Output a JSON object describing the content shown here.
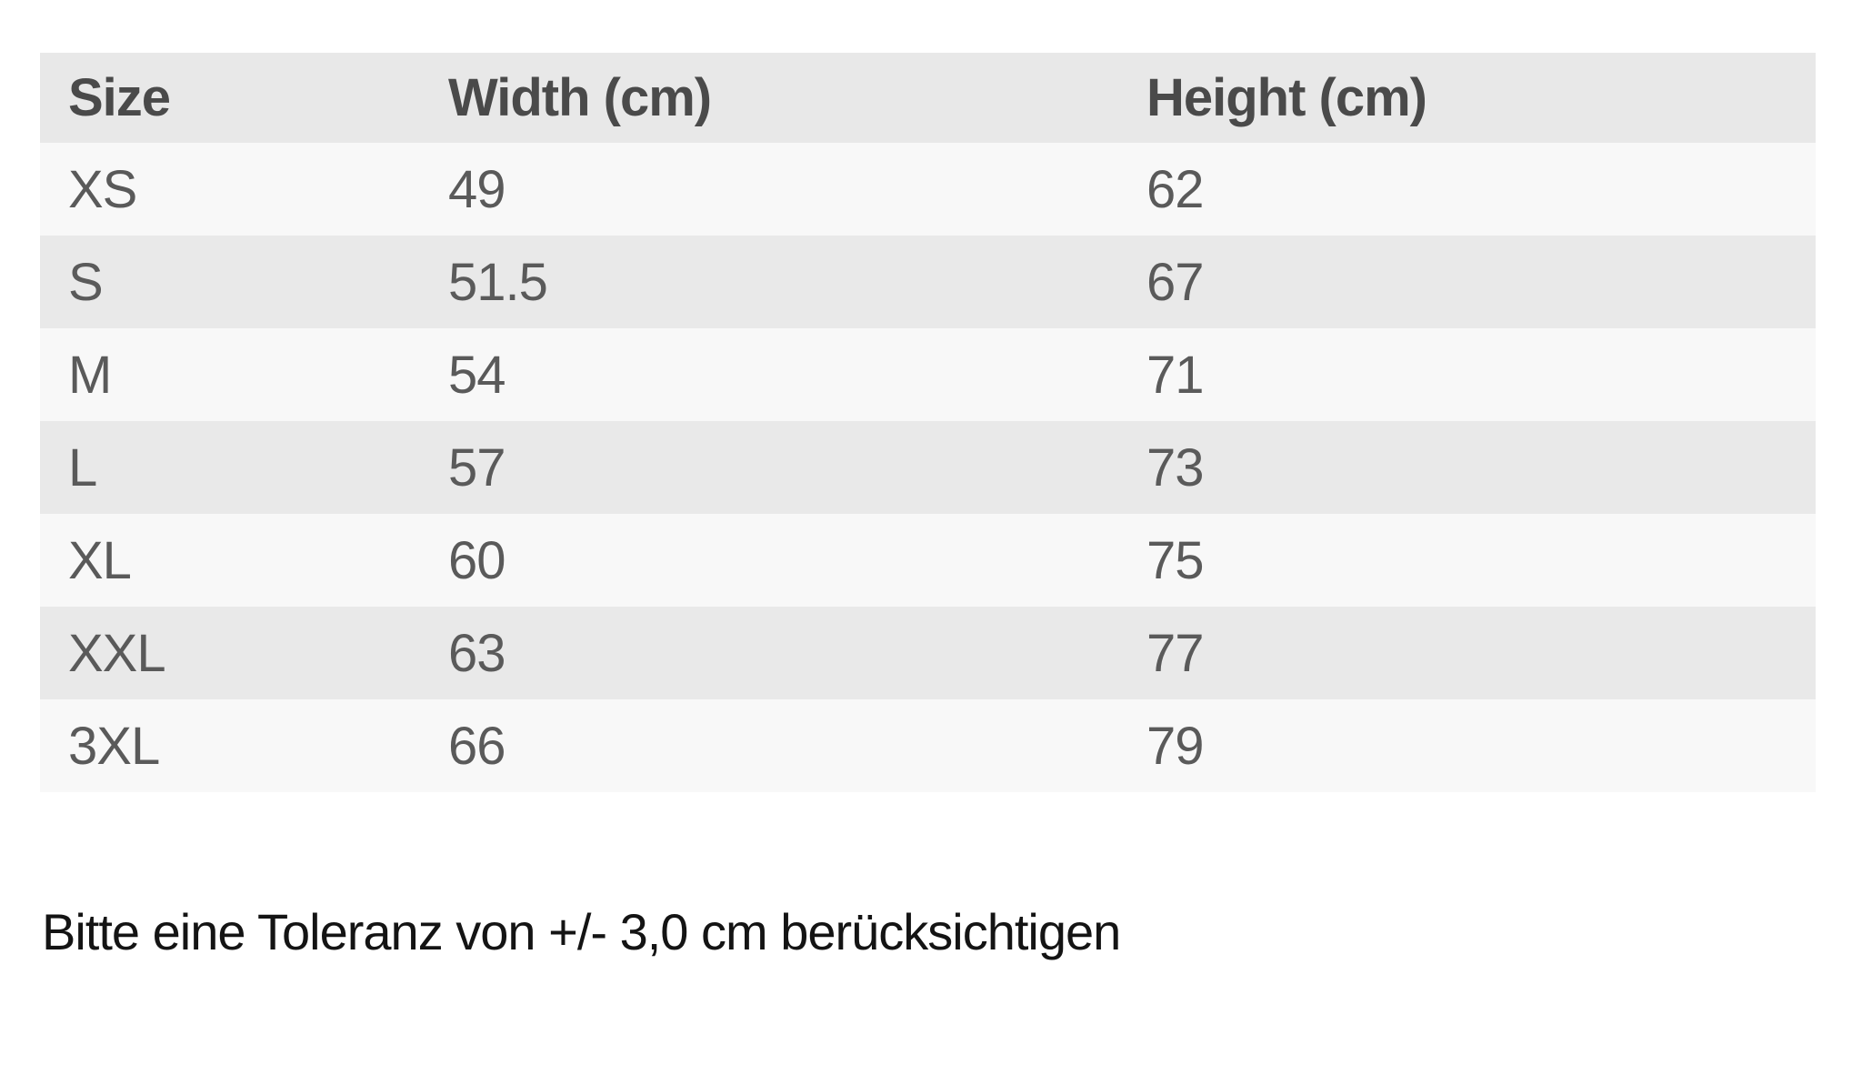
{
  "chart_data": {
    "type": "table",
    "columns": [
      "Size",
      "Width (cm)",
      "Height (cm)"
    ],
    "rows": [
      [
        "XS",
        "49",
        "62"
      ],
      [
        "S",
        "51.5",
        "67"
      ],
      [
        "M",
        "54",
        "71"
      ],
      [
        "L",
        "57",
        "73"
      ],
      [
        "XL",
        "60",
        "75"
      ],
      [
        "XXL",
        "63",
        "77"
      ],
      [
        "3XL",
        "66",
        "79"
      ]
    ],
    "note": "Bitte eine Toleranz von +/- 3,0 cm berücksichtigen"
  },
  "colors": {
    "page_bg": "#ffffff",
    "header_bg": "#e8e8e8",
    "row_light_bg": "#f8f8f8",
    "row_dark_bg": "#e9e9e9",
    "header_text": "#4a4a4a",
    "cell_text": "#5a5a5a",
    "note_text": "#141414"
  }
}
